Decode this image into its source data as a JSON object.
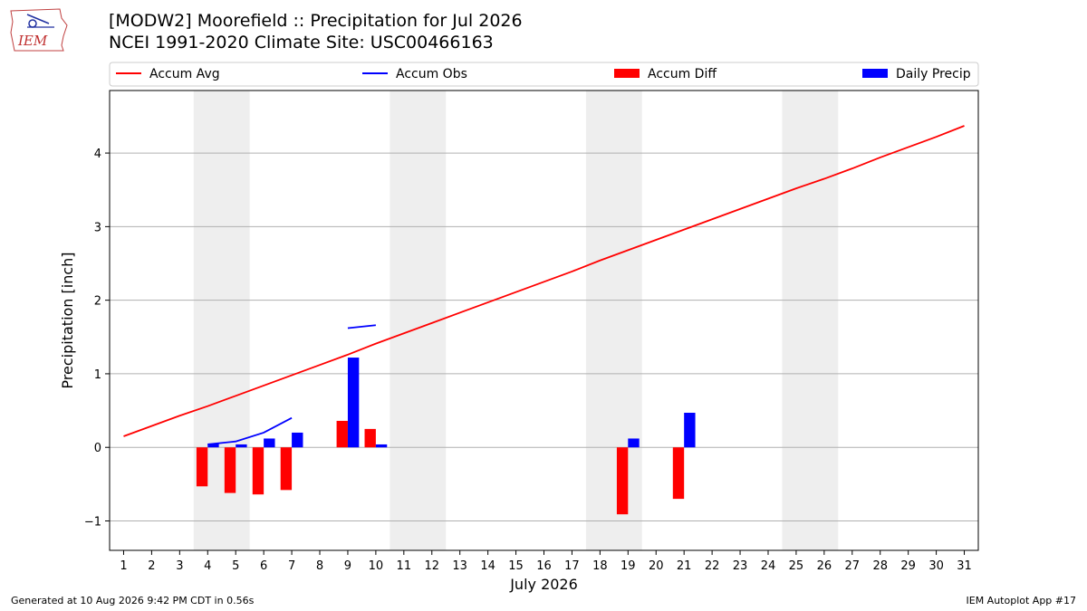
{
  "header": {
    "title_line1": "[MODW2] Moorefield :: Precipitation for Jul 2026",
    "title_line2": "NCEI 1991-2020 Climate Site: USC00466163",
    "logo_text": "IEM"
  },
  "footer": {
    "generated": "Generated at 10 Aug 2026 9:42 PM CDT in 0.56s",
    "app": "IEM Autoplot App #17"
  },
  "colors": {
    "avg": "#ff0000",
    "obs": "#0000ff",
    "diff": "#ff0000",
    "daily": "#0000ff",
    "weekend": "#eeeeee",
    "grid": "#b0b0b0"
  },
  "chart_data": {
    "type": "bar",
    "title": "[MODW2] Moorefield :: Precipitation for Jul 2026",
    "xlabel": "July 2026",
    "ylabel": "Precipitation [inch]",
    "xlim": [
      0.5,
      31.5
    ],
    "ylim": [
      -1.4,
      4.85
    ],
    "yticks": [
      -1,
      0,
      1,
      2,
      3,
      4
    ],
    "ytick_labels": [
      "−1",
      "0",
      "1",
      "2",
      "3",
      "4"
    ],
    "x": [
      1,
      2,
      3,
      4,
      5,
      6,
      7,
      8,
      9,
      10,
      11,
      12,
      13,
      14,
      15,
      16,
      17,
      18,
      19,
      20,
      21,
      22,
      23,
      24,
      25,
      26,
      27,
      28,
      29,
      30,
      31
    ],
    "xtick_labels": [
      "1",
      "2",
      "3",
      "4",
      "5",
      "6",
      "7",
      "8",
      "9",
      "10",
      "11",
      "12",
      "13",
      "14",
      "15",
      "16",
      "17",
      "18",
      "19",
      "20",
      "21",
      "22",
      "23",
      "24",
      "25",
      "26",
      "27",
      "28",
      "29",
      "30",
      "31"
    ],
    "weekend_spans": [
      [
        3.5,
        5.5
      ],
      [
        10.5,
        12.5
      ],
      [
        17.5,
        19.5
      ],
      [
        24.5,
        26.5
      ]
    ],
    "grid": "horizontal",
    "legend": {
      "placement": "top",
      "entries": [
        "Accum Avg",
        "Accum Obs",
        "Accum Diff",
        "Daily Precip"
      ]
    },
    "series": [
      {
        "name": "Accum Avg",
        "kind": "line",
        "values": [
          0.15,
          0.29,
          0.43,
          0.56,
          0.7,
          0.84,
          0.98,
          1.12,
          1.26,
          1.41,
          1.55,
          1.69,
          1.83,
          1.97,
          2.11,
          2.25,
          2.39,
          2.54,
          2.68,
          2.82,
          2.96,
          3.1,
          3.24,
          3.38,
          3.52,
          3.65,
          3.79,
          3.94,
          4.08,
          4.22,
          4.37
        ]
      },
      {
        "name": "Accum Obs",
        "kind": "line",
        "values": [
          null,
          null,
          null,
          0.04,
          0.08,
          0.2,
          0.4,
          null,
          1.62,
          1.66,
          null,
          null,
          null,
          null,
          null,
          null,
          null,
          null,
          null,
          null,
          null,
          null,
          null,
          null,
          null,
          null,
          null,
          null,
          null,
          null,
          null
        ]
      },
      {
        "name": "Accum Diff",
        "kind": "bar",
        "values": [
          null,
          null,
          null,
          -0.53,
          -0.62,
          -0.64,
          -0.58,
          null,
          0.36,
          0.25,
          null,
          null,
          null,
          null,
          null,
          null,
          null,
          null,
          -0.91,
          null,
          -0.7,
          null,
          null,
          null,
          null,
          null,
          null,
          null,
          null,
          null,
          null
        ]
      },
      {
        "name": "Daily Precip",
        "kind": "bar",
        "values": [
          null,
          null,
          null,
          0.05,
          0.04,
          0.12,
          0.2,
          null,
          1.22,
          0.04,
          null,
          null,
          null,
          null,
          null,
          null,
          null,
          null,
          0.12,
          null,
          0.47,
          null,
          null,
          null,
          null,
          null,
          null,
          null,
          null,
          null,
          null
        ]
      }
    ]
  }
}
